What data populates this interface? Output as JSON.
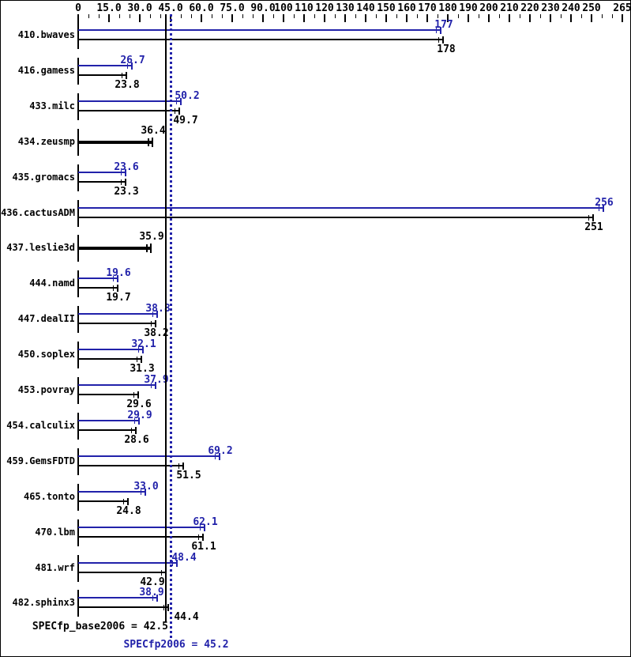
{
  "colors": {
    "peak": "#2222aa",
    "base": "#000000",
    "background": "#ffffff",
    "border": "#000000"
  },
  "axis": {
    "position": "top",
    "min": 0,
    "max": 265,
    "minor_step": 5,
    "major_ticks": [
      {
        "value": 0,
        "label": "0"
      },
      {
        "value": 15,
        "label": "15.0"
      },
      {
        "value": 30,
        "label": "30.0"
      },
      {
        "value": 45,
        "label": "45.0"
      },
      {
        "value": 60,
        "label": "60.0"
      },
      {
        "value": 75,
        "label": "75.0"
      },
      {
        "value": 90,
        "label": "90.0"
      },
      {
        "value": 100,
        "label": "100"
      },
      {
        "value": 110,
        "label": "110"
      },
      {
        "value": 120,
        "label": "120"
      },
      {
        "value": 130,
        "label": "130"
      },
      {
        "value": 140,
        "label": "140"
      },
      {
        "value": 150,
        "label": "150"
      },
      {
        "value": 160,
        "label": "160"
      },
      {
        "value": 170,
        "label": "170"
      },
      {
        "value": 180,
        "label": "180"
      },
      {
        "value": 190,
        "label": "190"
      },
      {
        "value": 200,
        "label": "200"
      },
      {
        "value": 210,
        "label": "210"
      },
      {
        "value": 220,
        "label": "220"
      },
      {
        "value": 230,
        "label": "230"
      },
      {
        "value": 240,
        "label": "240"
      },
      {
        "value": 250,
        "label": "250"
      },
      {
        "value": 265,
        "label": "265"
      }
    ]
  },
  "chart_data": {
    "type": "bar",
    "orientation": "horizontal",
    "xlim": [
      0,
      265
    ],
    "grid": false,
    "series_names": [
      "peak",
      "base"
    ],
    "benchmarks": [
      {
        "name": "410.bwaves",
        "peak": 177,
        "base": 178,
        "peak_label": "177",
        "base_label": "178"
      },
      {
        "name": "416.gamess",
        "peak": 26.7,
        "base": 23.8,
        "peak_label": "26.7",
        "base_label": "23.8"
      },
      {
        "name": "433.milc",
        "peak": 50.2,
        "base": 49.7,
        "peak_label": "50.2",
        "base_label": "49.7"
      },
      {
        "name": "434.zeusmp",
        "single": true,
        "peak": 36.4,
        "base": 36.4,
        "label": "36.4"
      },
      {
        "name": "435.gromacs",
        "peak": 23.6,
        "base": 23.3,
        "peak_label": "23.6",
        "base_label": "23.3"
      },
      {
        "name": "436.cactusADM",
        "peak": 256,
        "base": 251,
        "peak_label": "256",
        "base_label": "251"
      },
      {
        "name": "437.leslie3d",
        "single": true,
        "peak": 35.9,
        "base": 35.9,
        "label": "35.9"
      },
      {
        "name": "444.namd",
        "peak": 19.6,
        "base": 19.7,
        "peak_label": "19.6",
        "base_label": "19.7"
      },
      {
        "name": "447.dealII",
        "peak": 38.8,
        "base": 38.2,
        "peak_label": "38.8",
        "base_label": "38.2"
      },
      {
        "name": "450.soplex",
        "peak": 32.1,
        "base": 31.3,
        "peak_label": "32.1",
        "base_label": "31.3"
      },
      {
        "name": "453.povray",
        "peak": 37.9,
        "base": 29.6,
        "peak_label": "37.9",
        "base_label": "29.6"
      },
      {
        "name": "454.calculix",
        "peak": 29.9,
        "base": 28.6,
        "peak_label": "29.9",
        "base_label": "28.6"
      },
      {
        "name": "459.GemsFDTD",
        "peak": 69.2,
        "base": 51.5,
        "peak_label": "69.2",
        "base_label": "51.5"
      },
      {
        "name": "465.tonto",
        "peak": 33.0,
        "base": 24.8,
        "peak_label": "33.0",
        "base_label": "24.8"
      },
      {
        "name": "470.lbm",
        "peak": 62.1,
        "base": 61.1,
        "peak_label": "62.1",
        "base_label": "61.1"
      },
      {
        "name": "481.wrf",
        "peak": 48.4,
        "base": 42.9,
        "peak_label": "48.4",
        "base_label": "42.9"
      },
      {
        "name": "482.sphinx3",
        "peak": 38.9,
        "base": 44.4,
        "peak_label": "38.9",
        "base_label": "44.4"
      }
    ],
    "reference_lines": [
      {
        "label": "SPECfp_base2006 = 42.5",
        "value": 42.5,
        "series": "base",
        "style": "solid"
      },
      {
        "label": "SPECfp2006 = 45.2",
        "value": 45.2,
        "series": "peak",
        "style": "dotted"
      }
    ]
  }
}
